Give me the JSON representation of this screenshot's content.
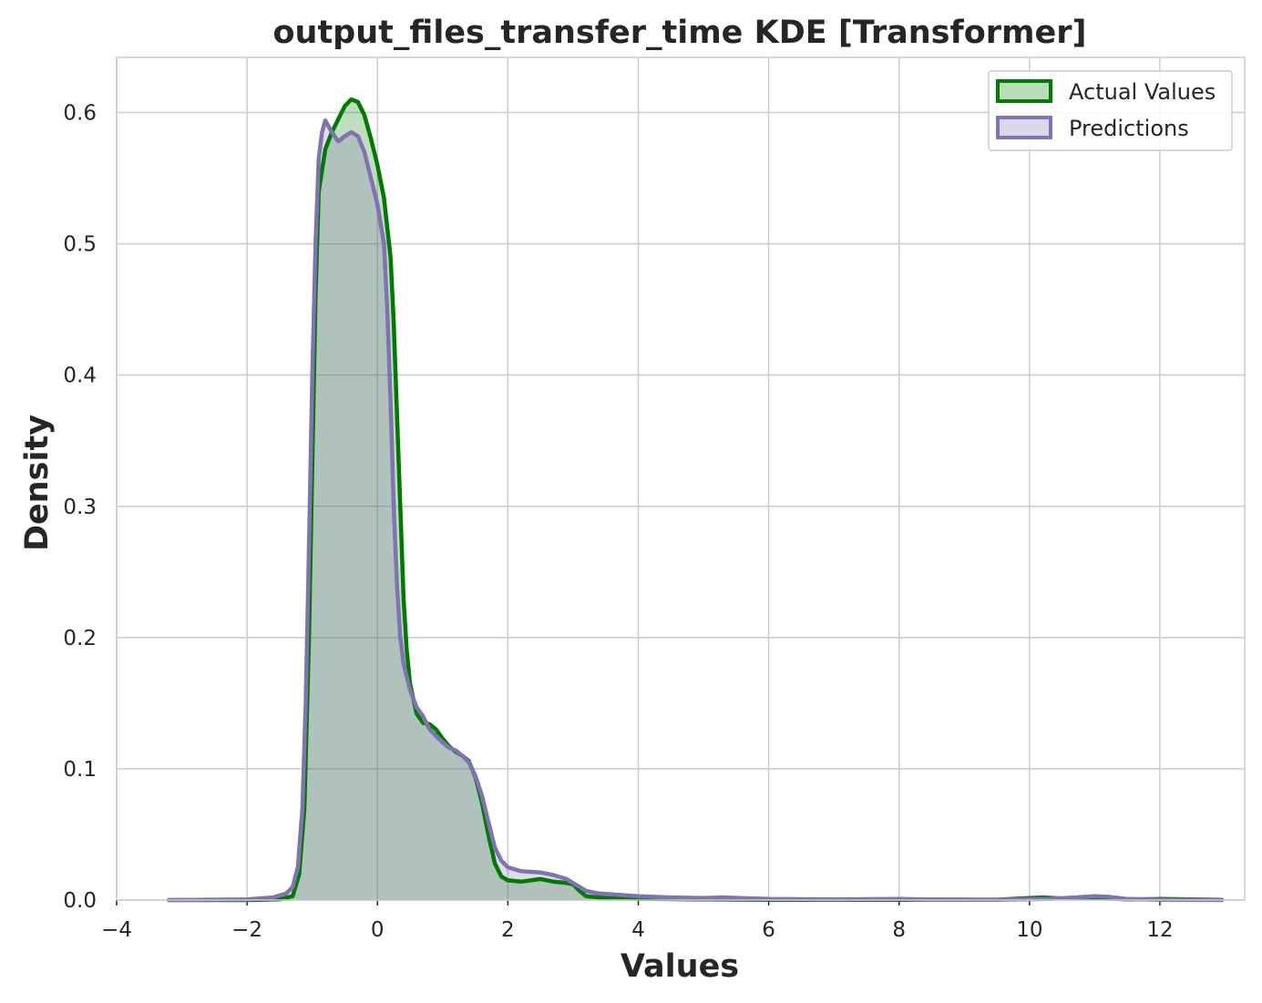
{
  "chart_data": {
    "type": "area",
    "title": "output_files_transfer_time KDE [Transformer]",
    "xlabel": "Values",
    "ylabel": "Density",
    "xlim": [
      -4.0,
      13.3
    ],
    "ylim": [
      0.0,
      0.642
    ],
    "xticks": [
      -4,
      -2,
      0,
      2,
      4,
      6,
      8,
      10,
      12
    ],
    "xtick_labels": [
      "−4",
      "−2",
      "0",
      "2",
      "4",
      "6",
      "8",
      "10",
      "12"
    ],
    "yticks": [
      0.0,
      0.1,
      0.2,
      0.3,
      0.4,
      0.5,
      0.6
    ],
    "ytick_labels": [
      "0.0",
      "0.1",
      "0.2",
      "0.3",
      "0.4",
      "0.5",
      "0.6"
    ],
    "grid": true,
    "legend_position": "top-right",
    "series": [
      {
        "name": "Actual Values",
        "line_color": "#007a00",
        "fill_color": "#b9dcb9",
        "points": [
          [
            -3.2,
            0.0
          ],
          [
            -2.0,
            0.0
          ],
          [
            -1.5,
            0.0005
          ],
          [
            -1.3,
            0.003
          ],
          [
            -1.2,
            0.02
          ],
          [
            -1.12,
            0.07
          ],
          [
            -1.05,
            0.2
          ],
          [
            -1.0,
            0.33
          ],
          [
            -0.95,
            0.46
          ],
          [
            -0.9,
            0.54
          ],
          [
            -0.8,
            0.572
          ],
          [
            -0.7,
            0.585
          ],
          [
            -0.6,
            0.595
          ],
          [
            -0.5,
            0.605
          ],
          [
            -0.4,
            0.61
          ],
          [
            -0.3,
            0.608
          ],
          [
            -0.2,
            0.598
          ],
          [
            -0.1,
            0.58
          ],
          [
            0.0,
            0.56
          ],
          [
            0.1,
            0.535
          ],
          [
            0.2,
            0.49
          ],
          [
            0.25,
            0.44
          ],
          [
            0.3,
            0.37
          ],
          [
            0.35,
            0.3
          ],
          [
            0.4,
            0.23
          ],
          [
            0.45,
            0.19
          ],
          [
            0.5,
            0.165
          ],
          [
            0.6,
            0.142
          ],
          [
            0.7,
            0.135
          ],
          [
            0.8,
            0.134
          ],
          [
            0.9,
            0.13
          ],
          [
            1.0,
            0.123
          ],
          [
            1.1,
            0.117
          ],
          [
            1.2,
            0.113
          ],
          [
            1.3,
            0.11
          ],
          [
            1.4,
            0.106
          ],
          [
            1.5,
            0.094
          ],
          [
            1.6,
            0.075
          ],
          [
            1.7,
            0.05
          ],
          [
            1.8,
            0.028
          ],
          [
            1.9,
            0.018
          ],
          [
            2.0,
            0.015
          ],
          [
            2.2,
            0.014
          ],
          [
            2.5,
            0.016
          ],
          [
            2.7,
            0.014
          ],
          [
            2.9,
            0.013
          ],
          [
            3.0,
            0.012
          ],
          [
            3.1,
            0.007
          ],
          [
            3.2,
            0.003
          ],
          [
            3.5,
            0.0015
          ],
          [
            4.0,
            0.001
          ],
          [
            5.0,
            0.0005
          ],
          [
            6.0,
            0.0002
          ],
          [
            8.0,
            0.0002
          ],
          [
            9.5,
            0.0003
          ],
          [
            10.0,
            0.0015
          ],
          [
            10.2,
            0.002
          ],
          [
            10.5,
            0.0012
          ],
          [
            11.0,
            0.0015
          ],
          [
            11.2,
            0.0012
          ],
          [
            11.5,
            0.0005
          ],
          [
            12.0,
            0.0008
          ],
          [
            12.5,
            0.0005
          ],
          [
            12.95,
            0.0002
          ]
        ]
      },
      {
        "name": "Predictions",
        "line_color": "#8172b3",
        "fill_color": "#dcd7ea",
        "points": [
          [
            -3.2,
            0.0
          ],
          [
            -2.0,
            0.0005
          ],
          [
            -1.6,
            0.002
          ],
          [
            -1.4,
            0.005
          ],
          [
            -1.3,
            0.01
          ],
          [
            -1.22,
            0.025
          ],
          [
            -1.15,
            0.07
          ],
          [
            -1.1,
            0.15
          ],
          [
            -1.05,
            0.27
          ],
          [
            -1.0,
            0.4
          ],
          [
            -0.95,
            0.5
          ],
          [
            -0.9,
            0.565
          ],
          [
            -0.85,
            0.585
          ],
          [
            -0.8,
            0.594
          ],
          [
            -0.7,
            0.585
          ],
          [
            -0.6,
            0.578
          ],
          [
            -0.5,
            0.582
          ],
          [
            -0.4,
            0.585
          ],
          [
            -0.3,
            0.582
          ],
          [
            -0.2,
            0.57
          ],
          [
            -0.1,
            0.55
          ],
          [
            0.0,
            0.53
          ],
          [
            0.1,
            0.5
          ],
          [
            0.15,
            0.45
          ],
          [
            0.2,
            0.38
          ],
          [
            0.25,
            0.3
          ],
          [
            0.3,
            0.24
          ],
          [
            0.35,
            0.2
          ],
          [
            0.4,
            0.18
          ],
          [
            0.5,
            0.16
          ],
          [
            0.6,
            0.147
          ],
          [
            0.7,
            0.14
          ],
          [
            0.8,
            0.13
          ],
          [
            0.9,
            0.125
          ],
          [
            1.0,
            0.12
          ],
          [
            1.1,
            0.116
          ],
          [
            1.2,
            0.114
          ],
          [
            1.3,
            0.11
          ],
          [
            1.4,
            0.105
          ],
          [
            1.5,
            0.095
          ],
          [
            1.6,
            0.08
          ],
          [
            1.7,
            0.06
          ],
          [
            1.8,
            0.04
          ],
          [
            1.9,
            0.03
          ],
          [
            2.0,
            0.025
          ],
          [
            2.2,
            0.022
          ],
          [
            2.5,
            0.021
          ],
          [
            2.7,
            0.019
          ],
          [
            2.9,
            0.016
          ],
          [
            3.0,
            0.013
          ],
          [
            3.1,
            0.01
          ],
          [
            3.2,
            0.007
          ],
          [
            3.4,
            0.005
          ],
          [
            3.7,
            0.004
          ],
          [
            4.0,
            0.003
          ],
          [
            4.5,
            0.002
          ],
          [
            5.0,
            0.0015
          ],
          [
            5.3,
            0.002
          ],
          [
            6.0,
            0.0008
          ],
          [
            7.0,
            0.0005
          ],
          [
            8.0,
            0.0008
          ],
          [
            8.5,
            0.0005
          ],
          [
            9.5,
            0.0003
          ],
          [
            10.3,
            0.0008
          ],
          [
            10.7,
            0.002
          ],
          [
            11.0,
            0.003
          ],
          [
            11.2,
            0.0025
          ],
          [
            11.5,
            0.0008
          ],
          [
            12.0,
            0.0002
          ],
          [
            12.95,
            0.0
          ]
        ]
      }
    ]
  }
}
